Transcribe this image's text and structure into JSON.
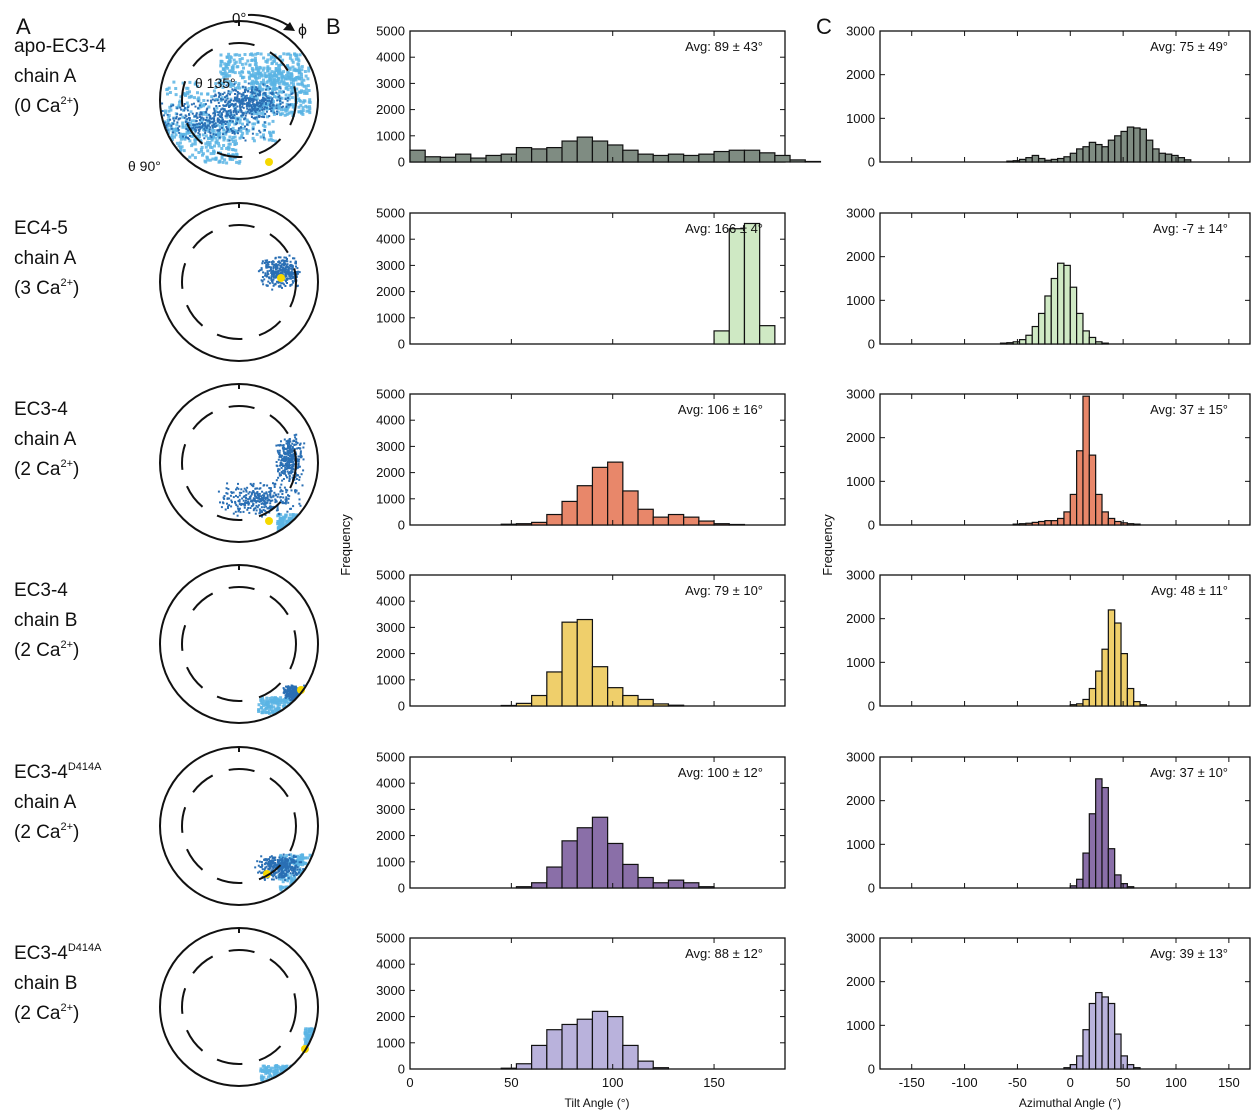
{
  "panels": {
    "a": "A",
    "b": "B",
    "c": "C"
  },
  "polar": {
    "zero_label": "0°",
    "phi_label": "ϕ",
    "theta135_label": "θ 135°",
    "theta90_label": "θ 90°",
    "highlight_color": "#f5d800",
    "cloud_dark": "#2a6fb4",
    "cloud_light": "#5bb4e4"
  },
  "rows": [
    {
      "name": "apo-EC3-4",
      "sup": "",
      "chain": "chain A",
      "ca": "(0 Ca",
      "ca_sup": "2+",
      "ca_end": ")",
      "color": "#7f8c82"
    },
    {
      "name": "EC4-5",
      "sup": "",
      "chain": "chain A",
      "ca": "(3 Ca",
      "ca_sup": "2+",
      "ca_end": ")",
      "color": "#cfe9c4"
    },
    {
      "name": "EC3-4",
      "sup": "",
      "chain": "chain A",
      "ca": "(2 Ca",
      "ca_sup": "2+",
      "ca_end": ")",
      "color": "#e8876a"
    },
    {
      "name": "EC3-4",
      "sup": "",
      "chain": "chain B",
      "ca": "(2 Ca",
      "ca_sup": "2+",
      "ca_end": ")",
      "color": "#efcf6b"
    },
    {
      "name": "EC3-4",
      "sup": "D414A",
      "chain": "chain A",
      "ca": "(2 Ca",
      "ca_sup": "2+",
      "ca_end": ")",
      "color": "#8a6fa8"
    },
    {
      "name": "EC3-4",
      "sup": "D414A",
      "chain": "chain B",
      "ca": "(2 Ca",
      "ca_sup": "2+",
      "ca_end": ")",
      "color": "#b9b2dc"
    }
  ],
  "chart_data": [
    {
      "panel": "B",
      "type": "bar",
      "xlabel": "Tilt Angle (°)",
      "ylabel": "Frequency",
      "xlim": [
        0,
        185
      ],
      "ylim": [
        0,
        5000
      ],
      "xticks": [
        0,
        50,
        100,
        150
      ],
      "yticks": [
        0,
        1000,
        2000,
        3000,
        4000,
        5000
      ],
      "bin_width": 7.5,
      "series": [
        {
          "annotation": "Avg: 89 ± 43°",
          "bin_start": 0,
          "values": [
            450,
            200,
            180,
            300,
            150,
            250,
            300,
            550,
            500,
            550,
            800,
            950,
            800,
            650,
            450,
            300,
            250,
            300,
            250,
            300,
            400,
            450,
            450,
            350,
            250,
            80,
            20
          ]
        },
        {
          "annotation": "Avg: 166 ± 4°",
          "bin_start": 150,
          "values": [
            500,
            4400,
            4600,
            700
          ]
        },
        {
          "annotation": "Avg: 106 ± 16°",
          "bin_start": 45,
          "values": [
            30,
            50,
            100,
            400,
            900,
            1500,
            2200,
            2400,
            1300,
            600,
            300,
            400,
            300,
            150,
            50,
            20
          ]
        },
        {
          "annotation": "Avg: 79 ± 10°",
          "bin_start": 45,
          "values": [
            20,
            100,
            400,
            1300,
            3200,
            3300,
            1500,
            700,
            400,
            250,
            80,
            30
          ]
        },
        {
          "annotation": "Avg: 100 ± 12°",
          "bin_start": 52.5,
          "values": [
            50,
            200,
            800,
            1800,
            2300,
            2700,
            1700,
            900,
            400,
            200,
            300,
            200,
            50
          ]
        },
        {
          "annotation": "Avg: 88 ± 12°",
          "bin_start": 45,
          "values": [
            30,
            200,
            900,
            1500,
            1700,
            1900,
            2200,
            2000,
            900,
            300,
            50
          ]
        }
      ]
    },
    {
      "panel": "C",
      "type": "bar",
      "xlabel": "Azimuthal Angle (°)",
      "ylabel": "Frequency",
      "xlim": [
        -180,
        170
      ],
      "ylim": [
        0,
        3000
      ],
      "xticks": [
        -150,
        -100,
        -50,
        0,
        50,
        100,
        150
      ],
      "yticks": [
        0,
        1000,
        2000,
        3000
      ],
      "bin_width": 6,
      "series": [
        {
          "annotation": "Avg: 75 ± 49°",
          "bin_start": -60,
          "values": [
            20,
            30,
            60,
            100,
            150,
            80,
            40,
            60,
            80,
            120,
            200,
            300,
            350,
            450,
            400,
            350,
            500,
            600,
            700,
            800,
            780,
            750,
            500,
            300,
            200,
            180,
            150,
            100,
            50
          ]
        },
        {
          "annotation": "Avg: -7 ± 14°",
          "bin_start": -66,
          "values": [
            20,
            30,
            50,
            100,
            200,
            400,
            700,
            1100,
            1500,
            1850,
            1800,
            1300,
            700,
            300,
            150,
            50,
            20
          ]
        },
        {
          "annotation": "Avg: 37 ± 15°",
          "bin_start": -54,
          "values": [
            20,
            30,
            40,
            60,
            80,
            100,
            100,
            150,
            300,
            700,
            1700,
            2950,
            1600,
            700,
            300,
            150,
            80,
            50,
            30,
            20
          ]
        },
        {
          "annotation": "Avg: 48 ± 11°",
          "bin_start": 0,
          "values": [
            30,
            50,
            150,
            400,
            800,
            1300,
            2200,
            1900,
            1200,
            400,
            100,
            30
          ]
        },
        {
          "annotation": "Avg: 37 ± 10°",
          "bin_start": 0,
          "values": [
            50,
            200,
            800,
            1700,
            2500,
            2300,
            900,
            300,
            100,
            30
          ]
        },
        {
          "annotation": "Avg: 39 ± 13°",
          "bin_start": -6,
          "values": [
            30,
            100,
            300,
            900,
            1500,
            1750,
            1650,
            1500,
            800,
            300,
            100,
            30
          ]
        }
      ]
    }
  ]
}
